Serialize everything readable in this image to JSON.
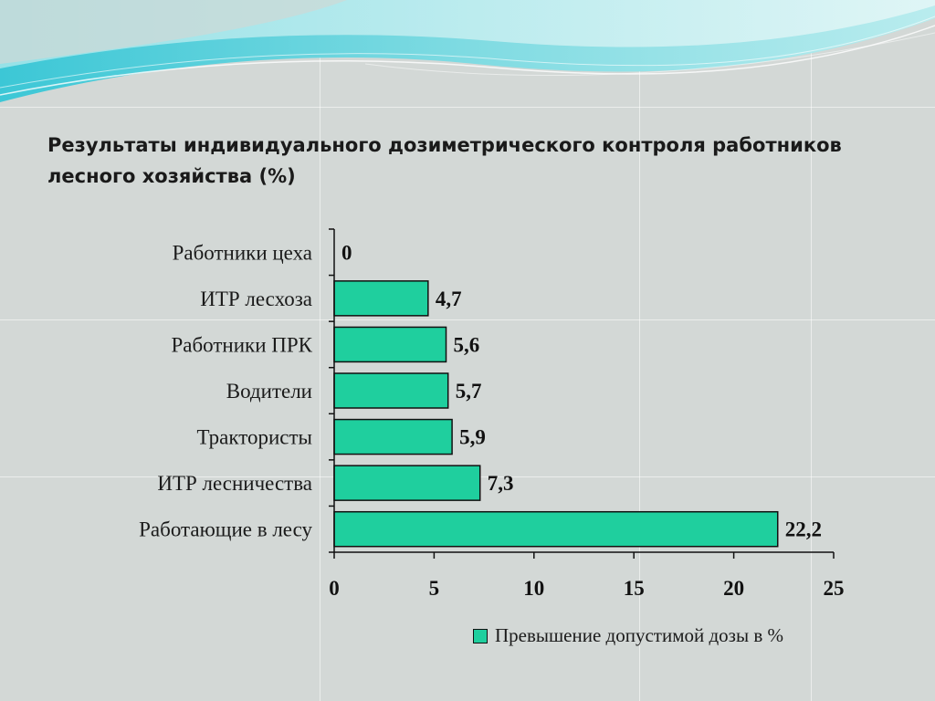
{
  "slide": {
    "title": "Результаты индивидуального дозиметрического контроля работников лесного хозяйства (%)"
  },
  "colors": {
    "bar_fill": "#1fcf9e",
    "bar_stroke": "#111111",
    "background": "#d3d8d6"
  },
  "chart_data": {
    "type": "bar",
    "orientation": "horizontal",
    "categories": [
      "Работники цеха",
      "ИТР лесхоза",
      "Работники ПРК",
      "Водители",
      "Трактористы",
      "ИТР лесничества",
      "Работающие в лесу"
    ],
    "series": [
      {
        "name": "Превышение допустимой дозы в %",
        "values": [
          0,
          4.7,
          5.6,
          5.7,
          5.9,
          7.3,
          22.2
        ],
        "value_labels": [
          "0",
          "4,7",
          "5,6",
          "5,7",
          "5,9",
          "7,3",
          "22,2"
        ]
      }
    ],
    "xlim": [
      0,
      25
    ],
    "xticks": [
      0,
      5,
      10,
      15,
      20,
      25
    ],
    "xtick_labels": [
      "0",
      "5",
      "10",
      "15",
      "20",
      "25"
    ],
    "grid": false,
    "legend_position": "bottom-right"
  }
}
